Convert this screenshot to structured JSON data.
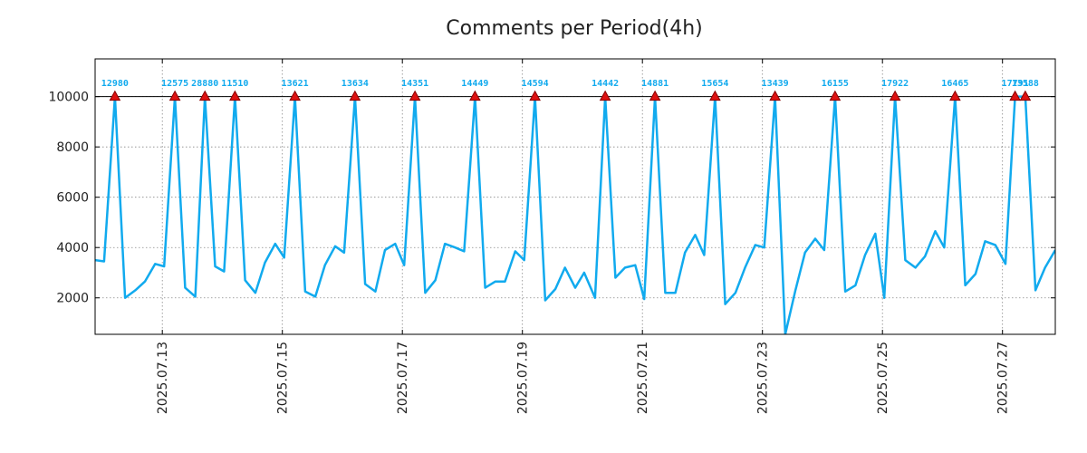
{
  "chart_data": {
    "type": "line",
    "title": "Comments per Period(4h)",
    "xlabel": "",
    "ylabel": "",
    "ylim": [
      550,
      11500
    ],
    "xlim": [
      0,
      16.0
    ],
    "grid": true,
    "y_ticks": [
      2000,
      4000,
      6000,
      8000,
      10000
    ],
    "x_ticks": [
      {
        "x": 1.12,
        "label": "2025.07.13"
      },
      {
        "x": 3.12,
        "label": "2025.07.15"
      },
      {
        "x": 5.12,
        "label": "2025.07.17"
      },
      {
        "x": 7.12,
        "label": "2025.07.19"
      },
      {
        "x": 9.12,
        "label": "2025.07.21"
      },
      {
        "x": 11.12,
        "label": "2025.07.23"
      },
      {
        "x": 13.12,
        "label": "2025.07.25"
      },
      {
        "x": 15.12,
        "label": "2025.07.27"
      }
    ],
    "cap_line": 10000,
    "series": [
      {
        "name": "comments",
        "color": "#11aaee",
        "x": [
          0.0,
          0.15,
          0.33,
          0.5,
          0.67,
          0.83,
          1.0,
          1.15,
          1.33,
          1.5,
          1.67,
          1.83,
          2.0,
          2.15,
          2.33,
          2.5,
          2.67,
          2.83,
          3.0,
          3.15,
          3.33,
          3.5,
          3.67,
          3.83,
          4.0,
          4.15,
          4.33,
          4.5,
          4.67,
          4.83,
          5.0,
          5.15,
          5.33,
          5.5,
          5.67,
          5.83,
          6.0,
          6.15,
          6.33,
          6.5,
          6.67,
          6.83,
          7.0,
          7.15,
          7.33,
          7.5,
          7.67,
          7.83,
          8.0,
          8.15,
          8.33,
          8.5,
          8.67,
          8.83,
          9.0,
          9.15,
          9.33,
          9.5,
          9.67,
          9.83,
          10.0,
          10.15,
          10.33,
          10.5,
          10.67,
          10.83,
          11.0,
          11.15,
          11.33,
          11.5,
          11.67,
          11.83,
          12.0,
          12.15,
          12.33,
          12.5,
          12.67,
          12.83,
          13.0,
          13.15,
          13.33,
          13.5,
          13.67,
          13.83,
          14.0,
          14.15,
          14.33,
          14.5,
          14.67,
          14.83,
          15.0,
          15.17,
          15.33,
          15.5,
          15.67,
          15.83,
          16.0
        ],
        "y": [
          3500,
          3450,
          10000,
          2000,
          2300,
          2650,
          3350,
          3250,
          10000,
          2400,
          2050,
          10000,
          3250,
          3050,
          10000,
          2700,
          2200,
          3400,
          4150,
          3600,
          10000,
          2250,
          2050,
          3300,
          4050,
          3800,
          10000,
          2550,
          2250,
          3900,
          4150,
          3300,
          10000,
          2200,
          2700,
          4150,
          4000,
          3850,
          10000,
          2400,
          2650,
          2650,
          3850,
          3500,
          10000,
          1900,
          2350,
          3200,
          2400,
          3000,
          2000,
          10000,
          2800,
          3200,
          3300,
          1950,
          10000,
          2200,
          2200,
          3800,
          4500,
          3700,
          10000,
          1750,
          2200,
          3200,
          4100,
          4000,
          10000,
          550,
          2300,
          3800,
          4350,
          3900,
          10000,
          2250,
          2500,
          3700,
          4550,
          2000,
          10000,
          3500,
          3200,
          3650,
          4650,
          4000,
          10000,
          2500,
          2950,
          4250,
          4100,
          3350,
          10000,
          10000,
          2300,
          3200,
          3900
        ]
      }
    ],
    "peaks": [
      {
        "x": 0.33,
        "label": "12980"
      },
      {
        "x": 1.33,
        "label": "12575"
      },
      {
        "x": 1.83,
        "label": "28880"
      },
      {
        "x": 2.33,
        "label": "11510"
      },
      {
        "x": 3.33,
        "label": "13621"
      },
      {
        "x": 4.33,
        "label": "13634"
      },
      {
        "x": 5.33,
        "label": "14351"
      },
      {
        "x": 6.33,
        "label": "14449"
      },
      {
        "x": 7.33,
        "label": "14594"
      },
      {
        "x": 8.5,
        "label": "14442"
      },
      {
        "x": 9.33,
        "label": "14881"
      },
      {
        "x": 10.33,
        "label": "15654"
      },
      {
        "x": 11.33,
        "label": "13439"
      },
      {
        "x": 12.33,
        "label": "16155"
      },
      {
        "x": 13.33,
        "label": "17922"
      },
      {
        "x": 14.33,
        "label": "16465"
      },
      {
        "x": 15.33,
        "label": "17791"
      },
      {
        "x": 15.5,
        "label": "13588"
      }
    ],
    "colors": {
      "line": "#11aaee",
      "marker_fill": "#dd1111",
      "marker_stroke": "#880000",
      "peak_label": "#11aaee",
      "grid": "#888888",
      "cap_line": "#000000"
    }
  }
}
